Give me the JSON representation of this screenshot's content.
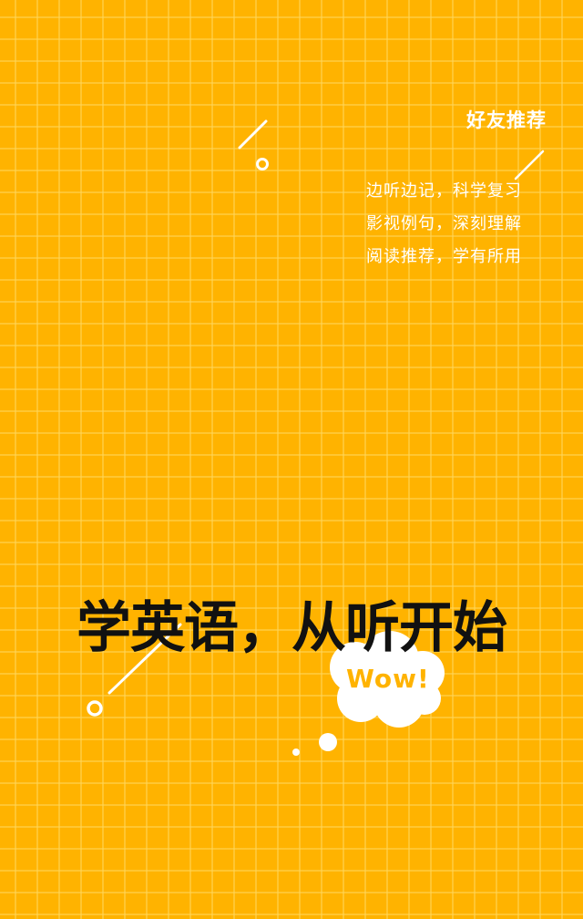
{
  "friend_section": {
    "title": "好友推荐",
    "features": [
      "边听边记，科学复习",
      "影视例句，深刻理解",
      "阅读推荐，学有所用"
    ]
  },
  "slogan": "学英语，从听开始",
  "bubble": {
    "text": "Wow!"
  },
  "colors": {
    "background": "#FFB300",
    "grid": "#FFD65A",
    "text_light": "#FFFFFF",
    "slogan": "#111111",
    "wow": "#FFB300"
  }
}
